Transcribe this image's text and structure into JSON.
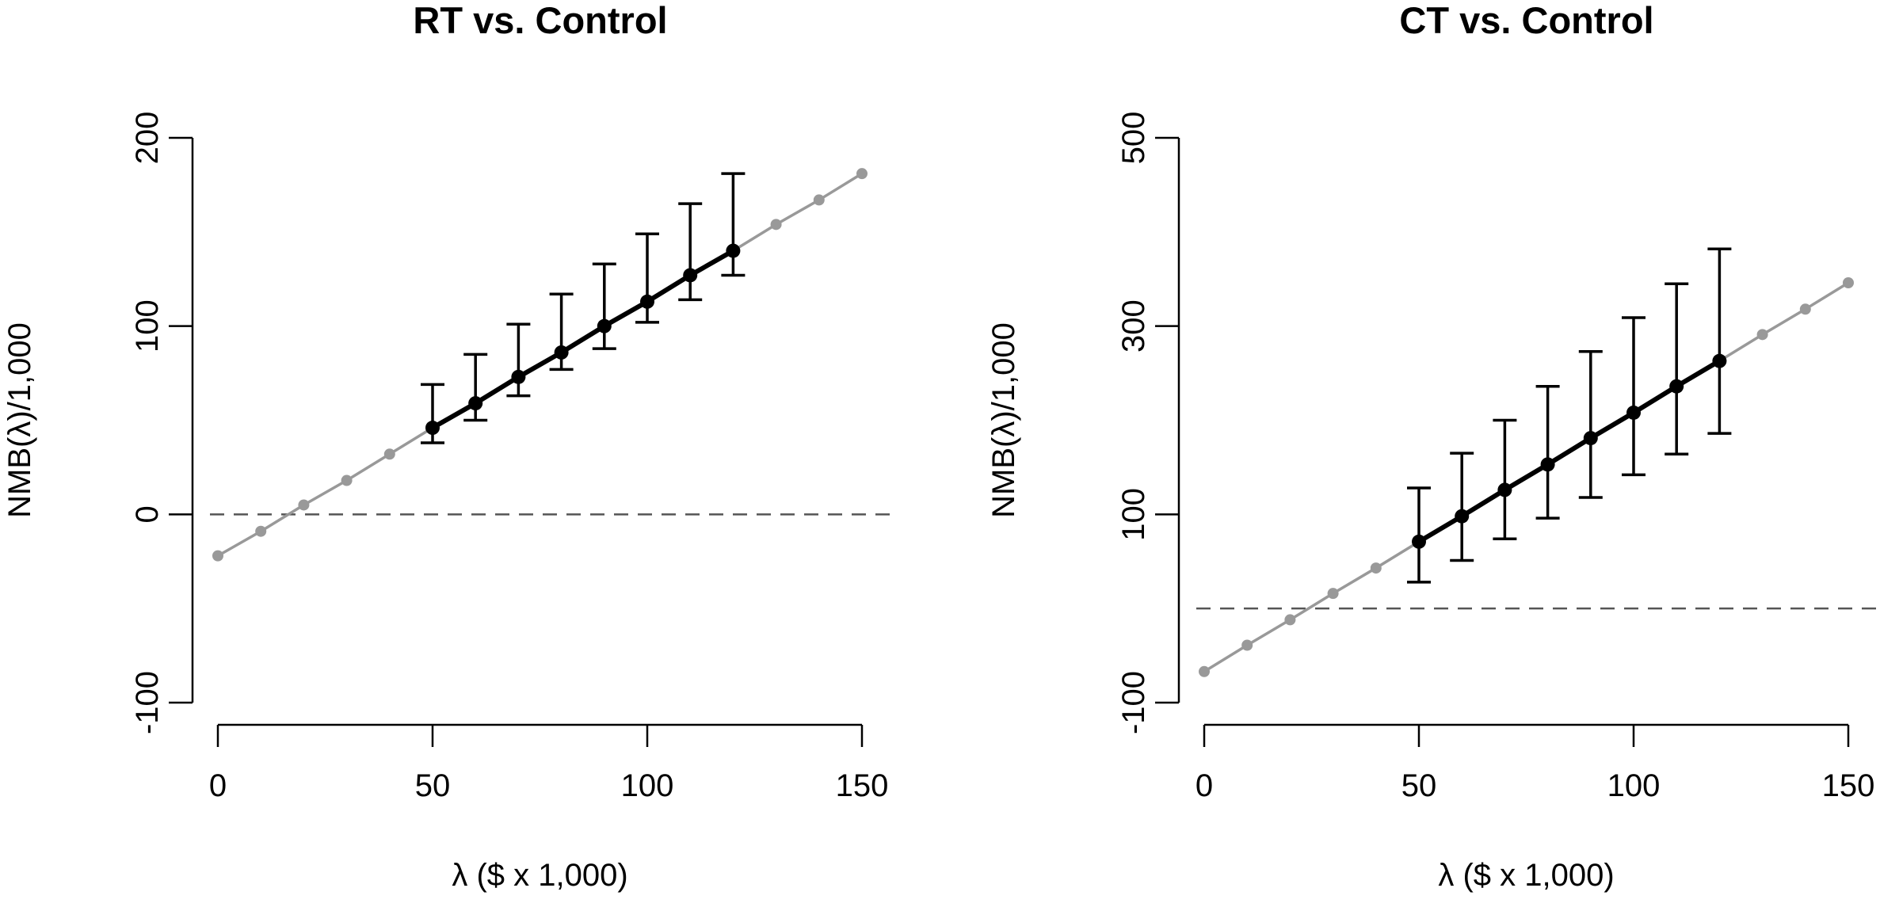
{
  "chart_data": [
    {
      "type": "line",
      "title": "RT vs. Control",
      "xlabel": "λ ($ x 1,000)",
      "ylabel": "NMB(λ)/1,000",
      "xlim": [
        0,
        150
      ],
      "ylim": [
        -100,
        200
      ],
      "xticks": [
        0,
        50,
        100,
        150
      ],
      "yticks": [
        -100,
        0,
        100,
        200
      ],
      "ytick_labels": [
        "-100",
        "0",
        "100",
        "200"
      ],
      "reference_line": 0,
      "series": [
        {
          "style": "gray-line-with-points",
          "x": [
            0,
            10,
            20,
            30,
            40,
            50,
            60,
            70,
            80,
            90,
            100,
            110,
            120,
            130,
            140,
            150
          ],
          "y": [
            -22,
            -9,
            5,
            18,
            32,
            46,
            59,
            73,
            86,
            100,
            113,
            127,
            140,
            154,
            167,
            181
          ]
        },
        {
          "style": "black-line-with-error-bars",
          "x": [
            50,
            60,
            70,
            80,
            90,
            100,
            110,
            120
          ],
          "y": [
            46,
            59,
            73,
            86,
            100,
            113,
            127,
            140
          ],
          "lower": [
            38,
            50,
            63,
            77,
            88,
            102,
            114,
            127
          ],
          "upper": [
            69,
            85,
            101,
            117,
            133,
            149,
            165,
            181
          ]
        }
      ],
      "colors": {
        "gray": "#999999",
        "black": "#000000",
        "reference": "#555555"
      }
    },
    {
      "type": "line",
      "title": "CT vs. Control",
      "xlabel": "λ ($ x 1,000)",
      "ylabel": "NMB(λ)/1,000",
      "xlim": [
        0,
        150
      ],
      "ylim": [
        -100,
        500
      ],
      "xticks": [
        0,
        50,
        100,
        150
      ],
      "yticks": [
        -100,
        100,
        300,
        500
      ],
      "ytick_labels": [
        "-100",
        "100",
        "300",
        "500"
      ],
      "reference_line": 0,
      "series": [
        {
          "style": "gray-line-with-points",
          "x": [
            0,
            10,
            20,
            30,
            40,
            50,
            60,
            70,
            80,
            90,
            100,
            110,
            120,
            130,
            140,
            150
          ],
          "y": [
            -67,
            -39,
            -12,
            16,
            43,
            71,
            98,
            126,
            153,
            181,
            208,
            236,
            263,
            291,
            318,
            346
          ]
        },
        {
          "style": "black-line-with-error-bars",
          "x": [
            50,
            60,
            70,
            80,
            90,
            100,
            110,
            120
          ],
          "y": [
            71,
            98,
            126,
            153,
            181,
            208,
            236,
            263
          ],
          "lower": [
            28,
            51,
            74,
            96,
            118,
            142,
            164,
            186
          ],
          "upper": [
            128,
            165,
            200,
            236,
            273,
            309,
            345,
            382
          ]
        }
      ],
      "colors": {
        "gray": "#999999",
        "black": "#000000",
        "reference": "#555555"
      }
    }
  ]
}
